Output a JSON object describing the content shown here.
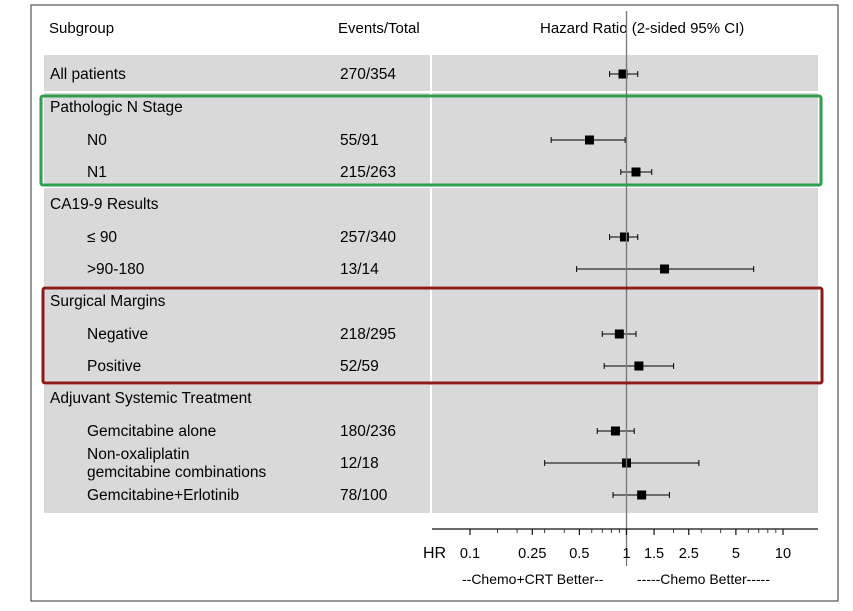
{
  "chart_data": {
    "type": "forest",
    "header": {
      "subgroup": "Subgroup",
      "events": "Events/Total",
      "hr": "Hazard Ratio (2-sided 95% CI)"
    },
    "rows": [
      {
        "label": "All patients",
        "events": "270/354",
        "hr": 0.95,
        "lo": 0.78,
        "hi": 1.18,
        "indent": false
      },
      {
        "label": "Pathologic N Stage",
        "events": "",
        "hr": null,
        "lo": null,
        "hi": null,
        "indent": false
      },
      {
        "label": "N0",
        "events": "55/91",
        "hr": 0.58,
        "lo": 0.33,
        "hi": 0.98,
        "indent": true
      },
      {
        "label": "N1",
        "events": "215/263",
        "hr": 1.15,
        "lo": 0.92,
        "hi": 1.45,
        "indent": true
      },
      {
        "label": "CA19-9 Results",
        "events": "",
        "hr": null,
        "lo": null,
        "hi": null,
        "indent": false
      },
      {
        "label": "≤ 90",
        "events": "257/340",
        "hr": 0.97,
        "lo": 0.78,
        "hi": 1.18,
        "indent": true
      },
      {
        "label": ">90-180",
        "events": "13/14",
        "hr": 1.75,
        "lo": 0.48,
        "hi": 6.5,
        "indent": true
      },
      {
        "label": "Surgical Margins",
        "events": "",
        "hr": null,
        "lo": null,
        "hi": null,
        "indent": false
      },
      {
        "label": "Negative",
        "events": "218/295",
        "hr": 0.9,
        "lo": 0.7,
        "hi": 1.15,
        "indent": true
      },
      {
        "label": "Positive",
        "events": "52/59",
        "hr": 1.2,
        "lo": 0.72,
        "hi": 2.0,
        "indent": true
      },
      {
        "label": "Adjuvant Systemic Treatment",
        "events": "",
        "hr": null,
        "lo": null,
        "hi": null,
        "indent": false
      },
      {
        "label": "Gemcitabine alone",
        "events": "180/236",
        "hr": 0.85,
        "lo": 0.65,
        "hi": 1.12,
        "indent": true
      },
      {
        "label": "Non-oxaliplatin\ngemcitabine combinations",
        "events": "12/18",
        "hr": 1.0,
        "lo": 0.3,
        "hi": 2.9,
        "indent": true
      },
      {
        "label": "Gemcitabine+Erlotinib",
        "events": "78/100",
        "hr": 1.25,
        "lo": 0.82,
        "hi": 1.88,
        "indent": true
      }
    ],
    "x_axis": {
      "label": "HR",
      "scale": "log",
      "ticks": [
        0.1,
        0.25,
        0.5,
        1,
        1.5,
        2.5,
        5,
        10
      ],
      "tick_labels": [
        "0.1",
        "0.25",
        "0.5",
        "1",
        "1.5",
        "2.5",
        "5",
        "10"
      ],
      "xlim": [
        0.1,
        10
      ],
      "reference": 1
    },
    "favors_left": "--Chemo+CRT Better--",
    "favors_right": "-----Chemo Better-----",
    "highlights": [
      {
        "group": "Pathologic N Stage",
        "color": "#2e9e4f"
      },
      {
        "group": "Surgical Margins",
        "color": "#8b1a1a"
      }
    ]
  },
  "colors": {
    "band": "#d9d9d9",
    "marker": "#000000",
    "reference_line": "#777777",
    "frame": "#555555"
  }
}
